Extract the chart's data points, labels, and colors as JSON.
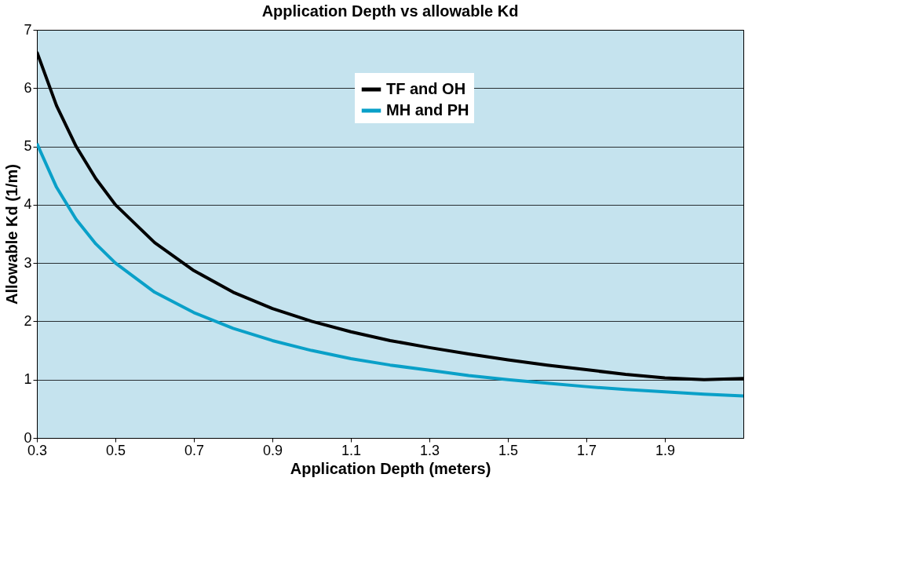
{
  "chart_data": {
    "type": "line",
    "title": "Application Depth vs allowable Kd",
    "xlabel": "Application Depth (meters)",
    "ylabel": "Allowable Kd (1/m)",
    "x": [
      0.3,
      0.35,
      0.4,
      0.45,
      0.5,
      0.6,
      0.7,
      0.8,
      0.9,
      1.0,
      1.1,
      1.2,
      1.3,
      1.4,
      1.5,
      1.6,
      1.7,
      1.8,
      1.9,
      2.0,
      2.1
    ],
    "series": [
      {
        "name": "TF and OH",
        "color": "#000000",
        "values": [
          6.62,
          5.7,
          5.0,
          4.45,
          4.0,
          3.35,
          2.87,
          2.5,
          2.22,
          2.0,
          1.82,
          1.67,
          1.55,
          1.44,
          1.34,
          1.25,
          1.17,
          1.09,
          1.03,
          1.0,
          1.02
        ]
      },
      {
        "name": "MH and PH",
        "color": "#0aa0c8",
        "values": [
          5.05,
          4.3,
          3.75,
          3.33,
          3.0,
          2.5,
          2.15,
          1.88,
          1.67,
          1.5,
          1.36,
          1.25,
          1.16,
          1.07,
          1.0,
          0.94,
          0.88,
          0.83,
          0.79,
          0.75,
          0.72
        ]
      }
    ],
    "xlim": [
      0.3,
      2.1
    ],
    "xticks": [
      0.3,
      0.5,
      0.7,
      0.9,
      1.1,
      1.3,
      1.5,
      1.7,
      1.9
    ],
    "ylim": [
      0,
      7
    ],
    "yticks": [
      0,
      1,
      2,
      3,
      4,
      5,
      6,
      7
    ],
    "grid": "y",
    "legend": "top",
    "marker": "none",
    "line_style": "solid"
  }
}
